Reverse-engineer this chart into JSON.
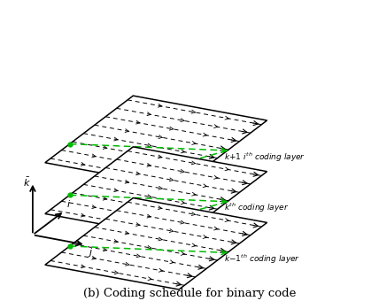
{
  "title": "(b) Coding schedule for binary code",
  "layer_labels": [
    "k+1 i^{th} coding layer",
    "k^{th} coding layer",
    "k-1^{th} coding layer"
  ],
  "green_color": "#00bb00",
  "bg_color": "white",
  "n_arrow_rows": 8,
  "n_arrow_segments": 4
}
